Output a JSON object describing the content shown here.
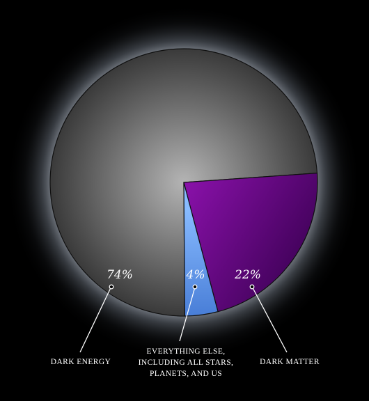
{
  "chart_data": {
    "type": "pie",
    "start_angle_deg": -4,
    "slices": [
      {
        "key": "dark_matter",
        "label": "DARK MATTER",
        "value": 22,
        "value_label": "22%",
        "color_light": "#8a11aa",
        "color_dark": "#3a0052"
      },
      {
        "key": "everything_else",
        "label_lines": [
          "EVERYTHING ELSE,",
          "INCLUDING ALL STARS,",
          "PLANETS, AND US"
        ],
        "value": 4,
        "value_label": "4%",
        "color_light": "#88bbff",
        "color_dark": "#4a7fd8"
      },
      {
        "key": "dark_energy",
        "label": "DARK ENERGY",
        "value": 74,
        "value_label": "74%",
        "color_light": "#b4b4b4",
        "color_dark": "#3a3a3a"
      }
    ],
    "background": "#000000",
    "glow_color": "#c8d0dc"
  }
}
